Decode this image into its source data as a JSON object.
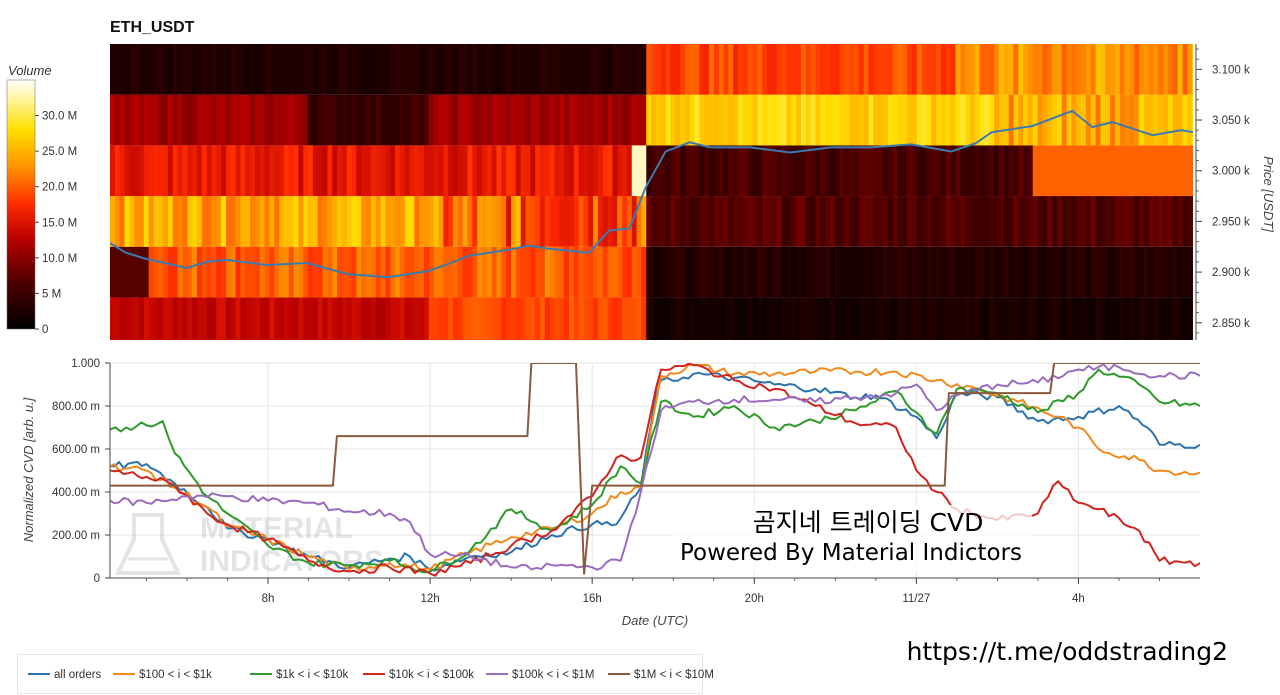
{
  "chart_data": [
    {
      "type": "heatmap",
      "title": "ETH_USDT",
      "colorbar": {
        "label": "Volume",
        "ticks": [
          "0",
          "5 M",
          "10.0 M",
          "15.0 M",
          "20.0 M",
          "25.0 M",
          "30.0 M"
        ],
        "range": [
          0,
          35
        ]
      },
      "y_axis": {
        "label": "Price [USDT]",
        "ticks": [
          "2.850 k",
          "2.900 k",
          "2.950 k",
          "3.000 k",
          "3.050 k",
          "3.100 k"
        ],
        "range": [
          2833,
          3125
        ],
        "side": "right"
      },
      "price_bins": [
        2850,
        2900,
        2950,
        3000,
        3050,
        3100
      ],
      "price_line": {
        "color": "#3b7bb0",
        "points": [
          [
            0,
            2928
          ],
          [
            0.5,
            2931
          ],
          [
            1,
            2942
          ],
          [
            1.5,
            2945
          ],
          [
            2,
            2932
          ],
          [
            2.5,
            2939
          ],
          [
            3,
            2943
          ],
          [
            4,
            2931
          ],
          [
            4.5,
            2919
          ],
          [
            5,
            2913
          ],
          [
            6,
            2904
          ],
          [
            6.5,
            2910
          ],
          [
            7,
            2912
          ],
          [
            8,
            2907
          ],
          [
            9,
            2909
          ],
          [
            10,
            2898
          ],
          [
            11,
            2895
          ],
          [
            12,
            2901
          ],
          [
            12.5,
            2908
          ],
          [
            13,
            2916
          ],
          [
            14,
            2922
          ],
          [
            14.5,
            2926
          ],
          [
            15,
            2923
          ],
          [
            16,
            2919
          ],
          [
            16.5,
            2941
          ],
          [
            17,
            2943
          ],
          [
            17.4,
            2983
          ],
          [
            17.9,
            3019
          ],
          [
            18.5,
            3028
          ],
          [
            19,
            3023
          ],
          [
            20,
            3023
          ],
          [
            21,
            3018
          ],
          [
            22,
            3023
          ],
          [
            23,
            3023
          ],
          [
            24,
            3026
          ],
          [
            25,
            3019
          ],
          [
            25.6,
            3027
          ],
          [
            26,
            3038
          ],
          [
            27,
            3044
          ],
          [
            28,
            3059
          ],
          [
            28.5,
            3043
          ],
          [
            29,
            3048
          ],
          [
            30,
            3035
          ],
          [
            30.7,
            3040
          ],
          [
            31,
            3038
          ]
        ]
      }
    },
    {
      "type": "line",
      "xlabel": "Date (UTC)",
      "ylabel": "Normalized CVD [arb. u.]",
      "ylim": [
        0,
        1
      ],
      "xlim": [
        4.1,
        31.0
      ],
      "grid": true,
      "x_ticks": [
        {
          "value": 8,
          "label": "8h"
        },
        {
          "value": 12,
          "label": "12h"
        },
        {
          "value": 16,
          "label": "16h"
        },
        {
          "value": 20,
          "label": "20h"
        },
        {
          "value": 24,
          "label": "11/27"
        },
        {
          "value": 28,
          "label": "4h"
        }
      ],
      "y_ticks": [
        "0",
        "200.00 m",
        "400.00 m",
        "600.00 m",
        "800.00 m",
        "1.000"
      ],
      "legend_position": "bottom-left",
      "series": [
        {
          "name": "all orders",
          "color": "#2b73ad",
          "points": [
            [
              4.1,
              0.52
            ],
            [
              5,
              0.53
            ],
            [
              5.7,
              0.44
            ],
            [
              6.5,
              0.33
            ],
            [
              7,
              0.23
            ],
            [
              8,
              0.18
            ],
            [
              9,
              0.1
            ],
            [
              10,
              0.05
            ],
            [
              11,
              0.09
            ],
            [
              11.5,
              0.1
            ],
            [
              12,
              0.04
            ],
            [
              13,
              0.1
            ],
            [
              14,
              0.12
            ],
            [
              15,
              0.2
            ],
            [
              16,
              0.25
            ],
            [
              16.6,
              0.25
            ],
            [
              17.2,
              0.42
            ],
            [
              17.6,
              0.9
            ],
            [
              18.5,
              0.95
            ],
            [
              19.5,
              0.93
            ],
            [
              20.5,
              0.9
            ],
            [
              21.5,
              0.88
            ],
            [
              22.5,
              0.84
            ],
            [
              23,
              0.85
            ],
            [
              24,
              0.75
            ],
            [
              24.5,
              0.65
            ],
            [
              25,
              0.86
            ],
            [
              26,
              0.84
            ],
            [
              27,
              0.73
            ],
            [
              28,
              0.75
            ],
            [
              29,
              0.8
            ],
            [
              29.7,
              0.7
            ],
            [
              30,
              0.62
            ],
            [
              31,
              0.62
            ]
          ]
        },
        {
          "name": "$100 < i < $1k",
          "color": "#f08a1e",
          "points": [
            [
              4.1,
              0.52
            ],
            [
              5,
              0.5
            ],
            [
              5.7,
              0.42
            ],
            [
              6.5,
              0.33
            ],
            [
              7,
              0.24
            ],
            [
              8,
              0.18
            ],
            [
              9,
              0.1
            ],
            [
              10,
              0.04
            ],
            [
              11,
              0.07
            ],
            [
              12,
              0.04
            ],
            [
              13,
              0.12
            ],
            [
              14,
              0.19
            ],
            [
              15,
              0.23
            ],
            [
              16,
              0.3
            ],
            [
              16.7,
              0.4
            ],
            [
              17.2,
              0.42
            ],
            [
              17.7,
              0.94
            ],
            [
              18.5,
              0.99
            ],
            [
              19.5,
              0.95
            ],
            [
              20.5,
              0.95
            ],
            [
              21.5,
              0.96
            ],
            [
              22.5,
              0.96
            ],
            [
              23.5,
              0.96
            ],
            [
              24.5,
              0.92
            ],
            [
              25.5,
              0.88
            ],
            [
              26.5,
              0.82
            ],
            [
              27.5,
              0.75
            ],
            [
              28,
              0.7
            ],
            [
              28.5,
              0.6
            ],
            [
              29.5,
              0.55
            ],
            [
              30,
              0.5
            ],
            [
              31,
              0.49
            ]
          ]
        },
        {
          "name": "$1k < i < $10k",
          "color": "#2e9a2a",
          "points": [
            [
              4.1,
              0.69
            ],
            [
              4.5,
              0.7
            ],
            [
              5,
              0.71
            ],
            [
              5.4,
              0.73
            ],
            [
              5.7,
              0.58
            ],
            [
              6.5,
              0.38
            ],
            [
              7,
              0.3
            ],
            [
              8,
              0.15
            ],
            [
              9,
              0.07
            ],
            [
              10,
              0.06
            ],
            [
              11,
              0.08
            ],
            [
              12,
              0.03
            ],
            [
              13,
              0.13
            ],
            [
              14,
              0.32
            ],
            [
              15,
              0.22
            ],
            [
              16,
              0.34
            ],
            [
              16.7,
              0.52
            ],
            [
              17.2,
              0.44
            ],
            [
              17.7,
              0.82
            ],
            [
              18.5,
              0.75
            ],
            [
              19.5,
              0.8
            ],
            [
              20.5,
              0.7
            ],
            [
              21.5,
              0.73
            ],
            [
              22.5,
              0.78
            ],
            [
              23.5,
              0.87
            ],
            [
              24,
              0.77
            ],
            [
              24.5,
              0.67
            ],
            [
              25,
              0.88
            ],
            [
              26,
              0.86
            ],
            [
              27,
              0.77
            ],
            [
              28,
              0.86
            ],
            [
              28.5,
              0.97
            ],
            [
              29.5,
              0.9
            ],
            [
              30,
              0.82
            ],
            [
              31,
              0.8
            ]
          ]
        },
        {
          "name": "$10k < i < $100k",
          "color": "#d1241e",
          "points": [
            [
              4.1,
              0.5
            ],
            [
              5,
              0.47
            ],
            [
              5.7,
              0.43
            ],
            [
              6.5,
              0.3
            ],
            [
              7,
              0.25
            ],
            [
              8,
              0.18
            ],
            [
              9,
              0.08
            ],
            [
              10,
              0.03
            ],
            [
              11,
              0.05
            ],
            [
              12,
              0.02
            ],
            [
              13,
              0.07
            ],
            [
              14,
              0.15
            ],
            [
              15,
              0.22
            ],
            [
              16,
              0.38
            ],
            [
              16.6,
              0.56
            ],
            [
              17.2,
              0.56
            ],
            [
              17.7,
              0.97
            ],
            [
              18.5,
              0.99
            ],
            [
              19.5,
              0.92
            ],
            [
              20.5,
              0.88
            ],
            [
              21.5,
              0.8
            ],
            [
              22.5,
              0.72
            ],
            [
              23.5,
              0.7
            ],
            [
              24,
              0.5
            ],
            [
              24.5,
              0.4
            ],
            [
              25,
              0.32
            ],
            [
              26,
              0.27
            ],
            [
              27,
              0.3
            ],
            [
              27.5,
              0.45
            ],
            [
              28,
              0.35
            ],
            [
              28.5,
              0.32
            ],
            [
              29.5,
              0.22
            ],
            [
              30,
              0.08
            ],
            [
              31,
              0.07
            ]
          ]
        },
        {
          "name": "$100k < i < $1M",
          "color": "#9a6cbf",
          "points": [
            [
              4.1,
              0.36
            ],
            [
              5,
              0.35
            ],
            [
              6,
              0.38
            ],
            [
              7,
              0.38
            ],
            [
              8,
              0.36
            ],
            [
              9,
              0.35
            ],
            [
              10,
              0.31
            ],
            [
              11,
              0.3
            ],
            [
              11.5,
              0.26
            ],
            [
              12,
              0.11
            ],
            [
              13,
              0.1
            ],
            [
              14,
              0.05
            ],
            [
              14.5,
              0.04
            ],
            [
              15,
              0.06
            ],
            [
              16,
              0.05
            ],
            [
              16.7,
              0.08
            ],
            [
              17.2,
              0.4
            ],
            [
              17.7,
              0.78
            ],
            [
              18.5,
              0.82
            ],
            [
              19.5,
              0.83
            ],
            [
              20.5,
              0.83
            ],
            [
              21.5,
              0.82
            ],
            [
              22.5,
              0.84
            ],
            [
              23.5,
              0.86
            ],
            [
              24,
              0.9
            ],
            [
              24.5,
              0.78
            ],
            [
              25,
              0.85
            ],
            [
              26,
              0.9
            ],
            [
              27,
              0.91
            ],
            [
              28,
              0.97
            ],
            [
              29,
              0.98
            ],
            [
              30,
              0.94
            ],
            [
              31,
              0.94
            ]
          ]
        },
        {
          "name": "$1M < i < $10M",
          "color": "#8b5a3c",
          "points": [
            [
              4.1,
              0.43
            ],
            [
              9.6,
              0.43
            ],
            [
              9.7,
              0.66
            ],
            [
              14.4,
              0.66
            ],
            [
              14.5,
              1.0
            ],
            [
              15.6,
              1.0
            ],
            [
              15.8,
              0.02
            ],
            [
              16,
              0.43
            ],
            [
              24.7,
              0.43
            ],
            [
              24.8,
              0.86
            ],
            [
              27.3,
              0.86
            ],
            [
              27.4,
              1.0
            ],
            [
              31,
              1.0
            ]
          ]
        }
      ]
    }
  ],
  "watermark": {
    "line1": "MATERIAL",
    "line2": "INDICATORS"
  },
  "overlay": {
    "caption_line1": "곰지네 트레이딩 CVD",
    "caption_line2": "Powered By Material Indictors",
    "link": "https://t.me/oddstrading2"
  }
}
